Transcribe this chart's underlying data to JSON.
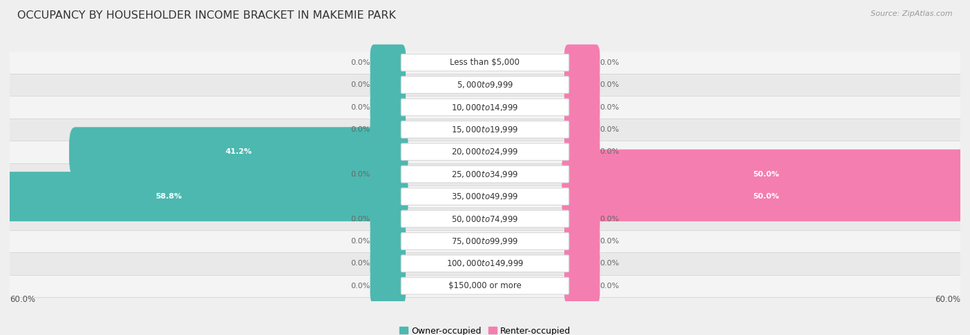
{
  "title": "OCCUPANCY BY HOUSEHOLDER INCOME BRACKET IN MAKEMIE PARK",
  "source": "Source: ZipAtlas.com",
  "categories": [
    "Less than $5,000",
    "$5,000 to $9,999",
    "$10,000 to $14,999",
    "$15,000 to $19,999",
    "$20,000 to $24,999",
    "$25,000 to $34,999",
    "$35,000 to $49,999",
    "$50,000 to $74,999",
    "$75,000 to $99,999",
    "$100,000 to $149,999",
    "$150,000 or more"
  ],
  "owner_values": [
    0.0,
    0.0,
    0.0,
    0.0,
    41.2,
    0.0,
    58.8,
    0.0,
    0.0,
    0.0,
    0.0
  ],
  "renter_values": [
    0.0,
    0.0,
    0.0,
    0.0,
    0.0,
    50.0,
    50.0,
    0.0,
    0.0,
    0.0,
    0.0
  ],
  "owner_color": "#4db8b0",
  "renter_color": "#f47eb0",
  "owner_label": "Owner-occupied",
  "renter_label": "Renter-occupied",
  "axis_limit": 60.0,
  "background_color": "#efefef",
  "title_fontsize": 11.5,
  "cat_label_fontsize": 8.5,
  "value_fontsize": 8.0,
  "legend_fontsize": 9,
  "source_fontsize": 8
}
